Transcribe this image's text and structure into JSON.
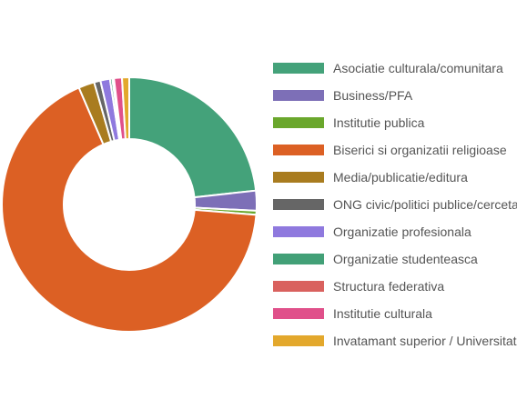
{
  "chart_data": {
    "type": "pie",
    "donut": true,
    "legend_position": "right",
    "slices": [
      {
        "label": "Asociatie culturala/comunitara",
        "value": 23.0,
        "color": "#44a27a"
      },
      {
        "label": "Business/PFA",
        "value": 2.5,
        "color": "#7d6fb7"
      },
      {
        "label": "Institutie publica",
        "value": 0.5,
        "color": "#6aa72c"
      },
      {
        "label": "Biserici si organizatii religioase",
        "value": 66.5,
        "color": "#dc6024"
      },
      {
        "label": "Media/publicatie/editura",
        "value": 2.0,
        "color": "#a97c1f"
      },
      {
        "label": "ONG civic/politici publice/cercetare",
        "value": 0.8,
        "color": "#666666"
      },
      {
        "label": "Organizatie profesionala",
        "value": 1.2,
        "color": "#8f79de"
      },
      {
        "label": "Organizatie studenteasca",
        "value": 0.3,
        "color": "#42a077"
      },
      {
        "label": "Structura federativa",
        "value": 0.2,
        "color": "#d9615e"
      },
      {
        "label": "Institutie culturala",
        "value": 1.0,
        "color": "#e0508a"
      },
      {
        "label": "Invatamant superior / Universitate",
        "value": 0.9,
        "color": "#e3a82c"
      }
    ]
  }
}
